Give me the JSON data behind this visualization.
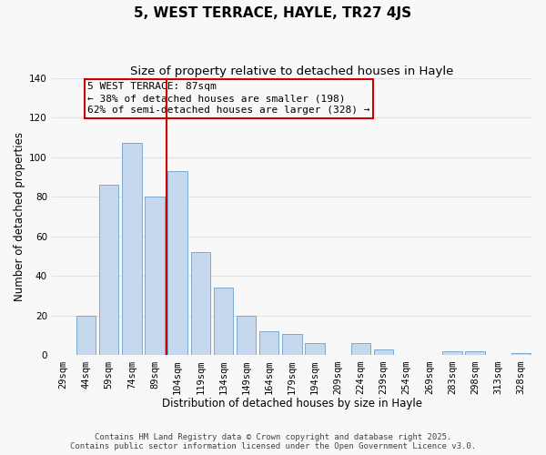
{
  "title": "5, WEST TERRACE, HAYLE, TR27 4JS",
  "subtitle": "Size of property relative to detached houses in Hayle",
  "xlabel": "Distribution of detached houses by size in Hayle",
  "ylabel": "Number of detached properties",
  "categories": [
    "29sqm",
    "44sqm",
    "59sqm",
    "74sqm",
    "89sqm",
    "104sqm",
    "119sqm",
    "134sqm",
    "149sqm",
    "164sqm",
    "179sqm",
    "194sqm",
    "209sqm",
    "224sqm",
    "239sqm",
    "254sqm",
    "269sqm",
    "283sqm",
    "298sqm",
    "313sqm",
    "328sqm"
  ],
  "values": [
    0,
    20,
    86,
    107,
    80,
    93,
    52,
    34,
    20,
    12,
    11,
    6,
    0,
    6,
    3,
    0,
    0,
    2,
    2,
    0,
    1
  ],
  "bar_color": "#c5d8ee",
  "bar_edge_color": "#7aaad0",
  "vline_x_index": 4,
  "vline_color": "#cc0000",
  "annotation_title": "5 WEST TERRACE: 87sqm",
  "annotation_line1": "← 38% of detached houses are smaller (198)",
  "annotation_line2": "62% of semi-detached houses are larger (328) →",
  "box_edge_color": "#cc0000",
  "ylim": [
    0,
    140
  ],
  "yticks": [
    0,
    20,
    40,
    60,
    80,
    100,
    120,
    140
  ],
  "footnote1": "Contains HM Land Registry data © Crown copyright and database right 2025.",
  "footnote2": "Contains public sector information licensed under the Open Government Licence v3.0.",
  "background_color": "#f8f8f8",
  "plot_bg_color": "#f8f8f8",
  "grid_color": "#d8e4f0",
  "title_fontsize": 11,
  "subtitle_fontsize": 9.5,
  "axis_label_fontsize": 8.5,
  "tick_fontsize": 7.5,
  "annotation_fontsize": 8,
  "footnote_fontsize": 6.5
}
